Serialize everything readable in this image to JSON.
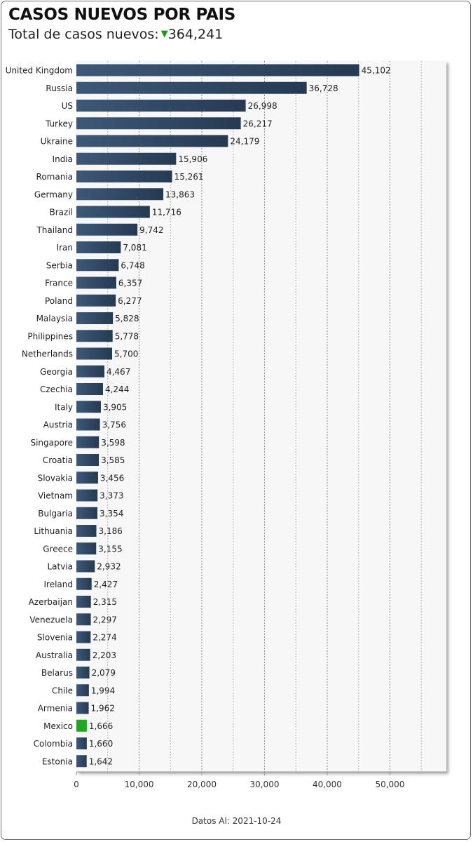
{
  "header": {
    "title": "CASOS NUEVOS POR PAIS",
    "subtitle_label": "Total de casos nuevos:",
    "subtitle_value": "364,241",
    "trend_icon": "triangle-down-icon",
    "trend_color": "#1a9a1a"
  },
  "footer": {
    "text": "Datos Al: 2021-10-24"
  },
  "colors": {
    "bar_dark": "#263a52",
    "bar_light": "#3d5878",
    "highlight": "#1fa81f",
    "plot_bg": "#f7f7f7",
    "grid": "#a6a6a6"
  },
  "chart_data": {
    "type": "bar",
    "orientation": "horizontal",
    "highlight_category": "Mexico",
    "categories": [
      "United Kingdom",
      "Russia",
      "US",
      "Turkey",
      "Ukraine",
      "India",
      "Romania",
      "Germany",
      "Brazil",
      "Thailand",
      "Iran",
      "Serbia",
      "France",
      "Poland",
      "Malaysia",
      "Philippines",
      "Netherlands",
      "Georgia",
      "Czechia",
      "Italy",
      "Austria",
      "Singapore",
      "Croatia",
      "Slovakia",
      "Vietnam",
      "Bulgaria",
      "Lithuania",
      "Greece",
      "Latvia",
      "Ireland",
      "Azerbaijan",
      "Venezuela",
      "Slovenia",
      "Australia",
      "Belarus",
      "Chile",
      "Armenia",
      "Mexico",
      "Colombia",
      "Estonia"
    ],
    "values": [
      45102,
      36728,
      26998,
      26217,
      24179,
      15906,
      15261,
      13863,
      11716,
      9742,
      7081,
      6748,
      6357,
      6277,
      5828,
      5778,
      5700,
      4467,
      4244,
      3905,
      3756,
      3598,
      3585,
      3456,
      3373,
      3354,
      3186,
      3155,
      2932,
      2427,
      2315,
      2297,
      2274,
      2203,
      2079,
      1994,
      1962,
      1666,
      1660,
      1642
    ],
    "value_labels": [
      "45,102",
      "36,728",
      "26,998",
      "26,217",
      "24,179",
      "15,906",
      "15,261",
      "13,863",
      "11,716",
      "9,742",
      "7,081",
      "6,748",
      "6,357",
      "6,277",
      "5,828",
      "5,778",
      "5,700",
      "4,467",
      "4,244",
      "3,905",
      "3,756",
      "3,598",
      "3,585",
      "3,456",
      "3,373",
      "3,354",
      "3,186",
      "3,155",
      "2,932",
      "2,427",
      "2,315",
      "2,297",
      "2,274",
      "2,203",
      "2,079",
      "1,994",
      "1,962",
      "1,666",
      "1,660",
      "1,642"
    ],
    "xlim": [
      0,
      59000
    ],
    "x_ticks": [
      0,
      10000,
      20000,
      30000,
      40000,
      50000
    ],
    "x_tick_labels": [
      "0",
      "10,000",
      "20,000",
      "30,000",
      "40,000",
      "50,000"
    ],
    "minor_grid_step": 5000,
    "grid": true,
    "title": "CASOS NUEVOS POR PAIS",
    "xlabel": "",
    "ylabel": ""
  }
}
